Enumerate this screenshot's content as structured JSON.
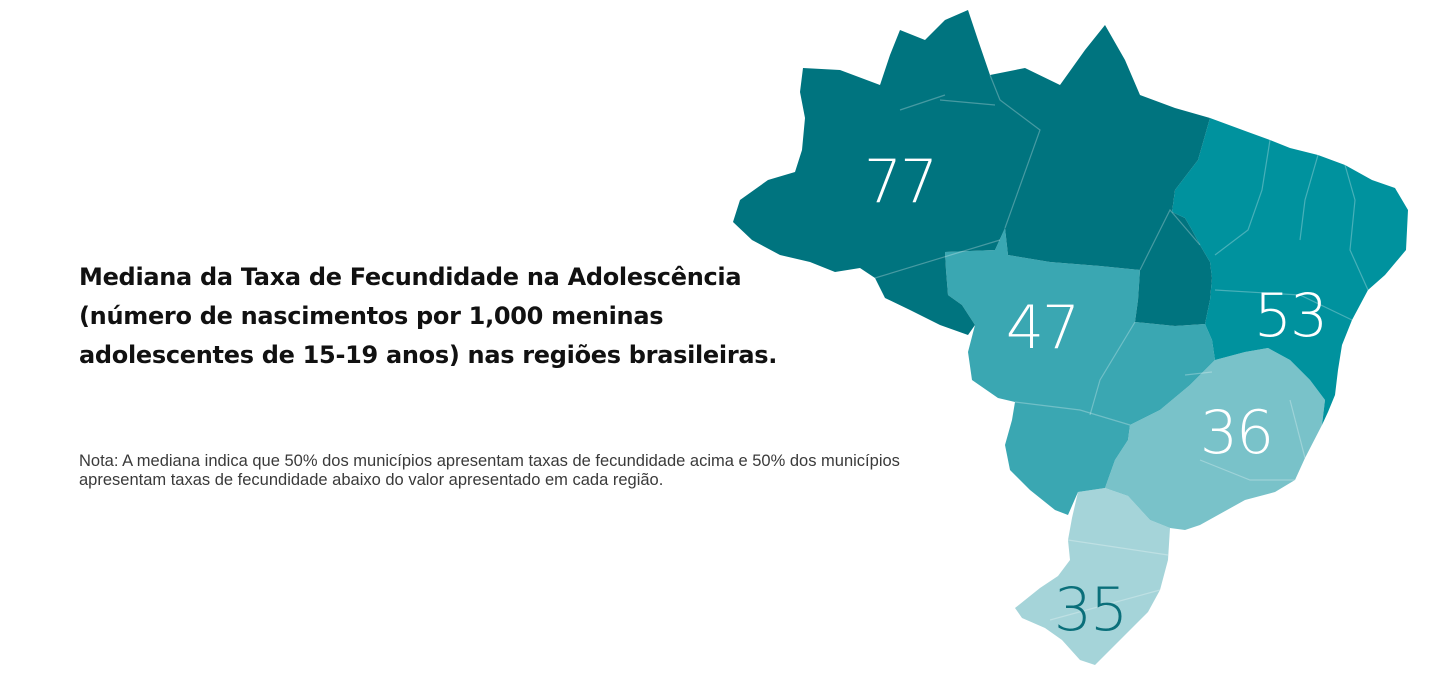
{
  "title": "Mediana da Taxa de Fecundidade na Adolescência (número de nascimentos por 1,000 meninas adolescentes de 15-19 anos) nas regiões brasileiras.",
  "note": "Nota: A mediana indica que 50% dos municípios apresentam taxas de fecundidade acima e 50% dos municípios apresentam taxas de fecundidade abaixo do valor apresentado em cada região.",
  "regions": [
    {
      "id": "norte",
      "value": "77",
      "color": "#00747f"
    },
    {
      "id": "nordeste",
      "value": "53",
      "color": "#00929e"
    },
    {
      "id": "centro-oeste",
      "value": "47",
      "color": "#3aa7b2"
    },
    {
      "id": "sudeste",
      "value": "36",
      "color": "#79c2c9"
    },
    {
      "id": "sul",
      "value": "35",
      "color": "#a5d4d9"
    }
  ]
}
